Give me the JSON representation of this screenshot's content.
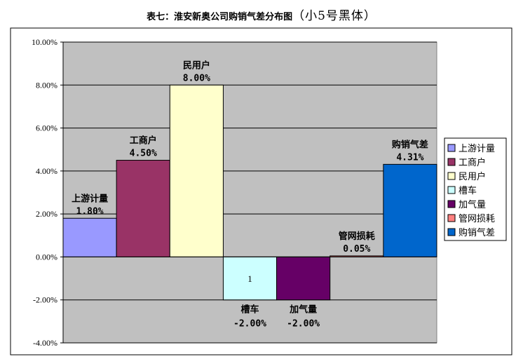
{
  "title": {
    "main": "表七：淮安新奥公司购销气差分布图",
    "note": "（小5号黑体）"
  },
  "chart_data": {
    "type": "bar",
    "categories": [
      "上游计量",
      "工商户",
      "民用户",
      "槽车",
      "加气量",
      "管网损耗",
      "购销气差"
    ],
    "values": [
      1.8,
      4.5,
      8.0,
      -2.0,
      -2.0,
      0.05,
      4.31
    ],
    "value_labels": [
      "1.80%",
      "4.50%",
      "8.00%",
      "-2.00%",
      "-2.00%",
      "0.05%",
      "4.31%"
    ],
    "colors": [
      "#9999ff",
      "#993366",
      "#ffffcc",
      "#ccffff",
      "#660066",
      "#ff8080",
      "#0066cc"
    ],
    "label_colors": [
      "#000000",
      "#000000",
      "#000000",
      "#000000",
      "#000000",
      "#000000",
      "#ff0000"
    ],
    "inner_label": {
      "index": 3,
      "text": "1"
    },
    "yticks": [
      "10.00%",
      "8.00%",
      "6.00%",
      "4.00%",
      "2.00%",
      "0.00%",
      "-2.00%",
      "-4.00%"
    ],
    "ylim": [
      -4,
      10
    ],
    "grid": true,
    "plot_background": "#c0c0c0",
    "legend_position": "right",
    "xlabel": "",
    "ylabel": ""
  }
}
